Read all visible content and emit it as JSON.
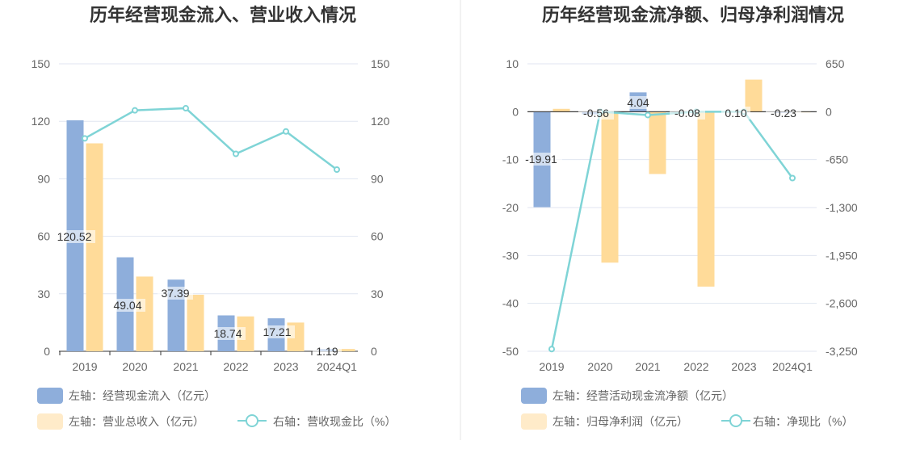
{
  "colors": {
    "blue": "#8eaedb",
    "orange": "#ffdb99",
    "orange_legend": "#ffebc9",
    "line": "#7fd4d6",
    "grid": "#e0e6f1",
    "axis": "#333333",
    "divider": "#e6e6e6"
  },
  "chart_data": [
    {
      "type": "bar",
      "title": "历年经营现金流入、营业收入情况",
      "categories": [
        "2019",
        "2020",
        "2021",
        "2022",
        "2023",
        "2024Q1"
      ],
      "left_ticks": [
        "0",
        "30",
        "60",
        "90",
        "120",
        "150"
      ],
      "right_ticks": [
        "0",
        "30",
        "60",
        "90",
        "120",
        "150"
      ],
      "ylim": [
        0,
        150
      ],
      "ylim_right": [
        0,
        150
      ],
      "series": [
        {
          "name": "左轴：经营现金流入（亿元）",
          "type": "bar",
          "axis": "left",
          "values": [
            120.52,
            49.04,
            37.39,
            18.74,
            17.21,
            1.19
          ],
          "labels": [
            "120.52",
            "49.04",
            "37.39",
            "18.74",
            "17.21",
            "1.19"
          ]
        },
        {
          "name": "左轴：营业总收入（亿元）",
          "type": "bar",
          "axis": "left",
          "values": [
            108.5,
            39.0,
            29.5,
            18.2,
            15.0,
            1.2
          ]
        },
        {
          "name": "右轴：营收现金比（%）",
          "type": "line",
          "axis": "right",
          "values": [
            111.1,
            125.7,
            126.8,
            103.0,
            114.7,
            94.8
          ]
        }
      ]
    },
    {
      "type": "bar",
      "title": "历年经营现金流净额、归母净利润情况",
      "categories": [
        "2019",
        "2020",
        "2021",
        "2022",
        "2023",
        "2024Q1"
      ],
      "left_ticks": [
        "-50",
        "-40",
        "-30",
        "-20",
        "-10",
        "0",
        "10"
      ],
      "right_ticks": [
        "-3,250",
        "-2,600",
        "-1,950",
        "-1,300",
        "-650",
        "0",
        "650"
      ],
      "ylim": [
        -50,
        10
      ],
      "ylim_right": [
        -3250,
        650
      ],
      "series": [
        {
          "name": "左轴：经营活动现金流净额（亿元）",
          "type": "bar",
          "axis": "left",
          "values": [
            -19.91,
            -0.56,
            4.04,
            -0.08,
            0.1,
            -0.23
          ],
          "labels": [
            "-19.91",
            "-0.56",
            "4.04",
            "-0.08",
            "0.10",
            "-0.23"
          ]
        },
        {
          "name": "左轴：归母净利润（亿元）",
          "type": "bar",
          "axis": "left",
          "values": [
            0.6,
            -31.5,
            -13.0,
            -36.5,
            6.7,
            0.0
          ]
        },
        {
          "name": "右轴：净现比（%）",
          "type": "line",
          "axis": "right",
          "values": [
            -3220,
            0,
            -45,
            0,
            0,
            -900
          ]
        }
      ]
    }
  ]
}
